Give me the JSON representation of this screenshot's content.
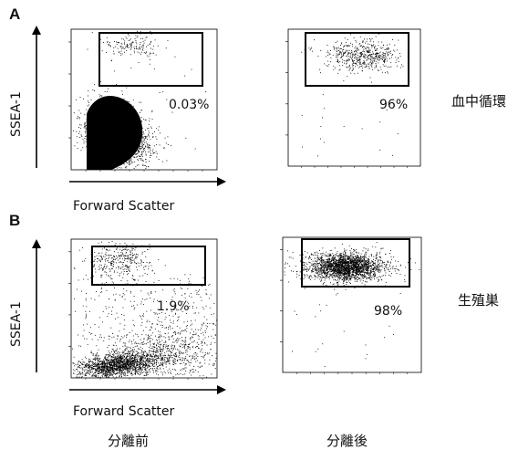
{
  "panels": [
    {
      "letter": "A",
      "row_label": "血中循環"
    },
    {
      "letter": "B",
      "row_label": "生殖巣"
    }
  ],
  "axes": {
    "x_title": "Forward Scatter",
    "y_title": "SSEA-1"
  },
  "columns": [
    "分離前",
    "分離後"
  ],
  "chart_data": [
    {
      "type": "scatter",
      "title": "",
      "xlabel": "Forward Scatter",
      "ylabel": "SSEA-1",
      "row": "血中循環",
      "column": "分離前",
      "gate_percent": "0.03%"
    },
    {
      "type": "scatter",
      "title": "",
      "xlabel": "",
      "ylabel": "",
      "row": "血中循環",
      "column": "分離後",
      "gate_percent": "96%"
    },
    {
      "type": "scatter",
      "title": "",
      "xlabel": "Forward Scatter",
      "ylabel": "SSEA-1",
      "row": "生殖巣",
      "column": "分離前",
      "gate_percent": "1.9%"
    },
    {
      "type": "scatter",
      "title": "",
      "xlabel": "",
      "ylabel": "",
      "row": "生殖巣",
      "column": "分離後",
      "gate_percent": "98%"
    }
  ]
}
